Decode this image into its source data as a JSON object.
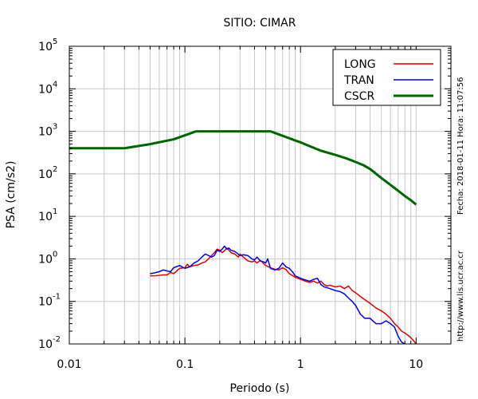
{
  "chart_data": {
    "type": "line",
    "title": "SITIO: CIMAR",
    "xlabel": "Periodo (s)",
    "ylabel": "PSA (cm/s2)",
    "x_scale": "log",
    "y_scale": "log",
    "xlim": [
      0.01,
      20
    ],
    "ylim": [
      0.01,
      100000
    ],
    "grid": "vertical",
    "legend_position": "top-right",
    "x_ticks": [
      {
        "value": 0.01,
        "label": "0.01"
      },
      {
        "value": 0.1,
        "label": "0.1"
      },
      {
        "value": 1,
        "label": "1"
      },
      {
        "value": 10,
        "label": "10"
      }
    ],
    "y_ticks": [
      {
        "value": 0.01,
        "base": "10",
        "exp": "-2"
      },
      {
        "value": 0.1,
        "base": "10",
        "exp": "-1"
      },
      {
        "value": 1,
        "base": "10",
        "exp": "0"
      },
      {
        "value": 10,
        "base": "10",
        "exp": "1"
      },
      {
        "value": 100,
        "base": "10",
        "exp": "2"
      },
      {
        "value": 1000,
        "base": "10",
        "exp": "3"
      },
      {
        "value": 10000,
        "base": "10",
        "exp": "4"
      },
      {
        "value": 100000,
        "base": "10",
        "exp": "5"
      }
    ],
    "side_text_1": "Fecha: 2018-01-11  Hora: 11:07:56",
    "side_text_2": "http://www.lis.ucr.ac.cr",
    "series": [
      {
        "name": "LONG",
        "color": "#e00000",
        "points": [
          [
            0.05,
            0.4
          ],
          [
            0.055,
            0.4
          ],
          [
            0.06,
            0.41
          ],
          [
            0.065,
            0.42
          ],
          [
            0.07,
            0.42
          ],
          [
            0.075,
            0.48
          ],
          [
            0.08,
            0.45
          ],
          [
            0.085,
            0.52
          ],
          [
            0.09,
            0.6
          ],
          [
            0.1,
            0.62
          ],
          [
            0.105,
            0.75
          ],
          [
            0.11,
            0.65
          ],
          [
            0.12,
            0.7
          ],
          [
            0.13,
            0.72
          ],
          [
            0.14,
            0.8
          ],
          [
            0.15,
            0.85
          ],
          [
            0.16,
            1.0
          ],
          [
            0.17,
            1.2
          ],
          [
            0.18,
            1.4
          ],
          [
            0.19,
            1.7
          ],
          [
            0.2,
            1.6
          ],
          [
            0.21,
            1.4
          ],
          [
            0.22,
            1.55
          ],
          [
            0.23,
            1.8
          ],
          [
            0.24,
            1.6
          ],
          [
            0.25,
            1.4
          ],
          [
            0.27,
            1.3
          ],
          [
            0.29,
            1.1
          ],
          [
            0.3,
            1.3
          ],
          [
            0.32,
            1.1
          ],
          [
            0.35,
            0.9
          ],
          [
            0.38,
            0.85
          ],
          [
            0.4,
            0.9
          ],
          [
            0.42,
            0.8
          ],
          [
            0.45,
            0.92
          ],
          [
            0.5,
            0.7
          ],
          [
            0.55,
            0.62
          ],
          [
            0.6,
            0.57
          ],
          [
            0.65,
            0.55
          ],
          [
            0.7,
            0.62
          ],
          [
            0.75,
            0.56
          ],
          [
            0.8,
            0.45
          ],
          [
            0.9,
            0.37
          ],
          [
            1.0,
            0.33
          ],
          [
            1.1,
            0.3
          ],
          [
            1.2,
            0.28
          ],
          [
            1.3,
            0.3
          ],
          [
            1.4,
            0.27
          ],
          [
            1.5,
            0.3
          ],
          [
            1.6,
            0.25
          ],
          [
            1.7,
            0.23
          ],
          [
            1.8,
            0.24
          ],
          [
            2.0,
            0.22
          ],
          [
            2.2,
            0.23
          ],
          [
            2.4,
            0.2
          ],
          [
            2.6,
            0.23
          ],
          [
            2.8,
            0.18
          ],
          [
            3.0,
            0.16
          ],
          [
            3.3,
            0.13
          ],
          [
            3.6,
            0.11
          ],
          [
            4.0,
            0.09
          ],
          [
            4.5,
            0.07
          ],
          [
            5.0,
            0.06
          ],
          [
            5.5,
            0.05
          ],
          [
            6.0,
            0.04
          ],
          [
            6.5,
            0.03
          ],
          [
            7.0,
            0.025
          ],
          [
            7.5,
            0.02
          ],
          [
            8.0,
            0.018
          ],
          [
            8.5,
            0.016
          ],
          [
            9.0,
            0.014
          ],
          [
            9.5,
            0.012
          ],
          [
            10.0,
            0.01
          ]
        ]
      },
      {
        "name": "TRAN",
        "color": "#0000e0",
        "points": [
          [
            0.05,
            0.45
          ],
          [
            0.055,
            0.47
          ],
          [
            0.06,
            0.5
          ],
          [
            0.065,
            0.55
          ],
          [
            0.07,
            0.52
          ],
          [
            0.075,
            0.5
          ],
          [
            0.08,
            0.62
          ],
          [
            0.09,
            0.7
          ],
          [
            0.1,
            0.6
          ],
          [
            0.11,
            0.65
          ],
          [
            0.12,
            0.8
          ],
          [
            0.13,
            0.9
          ],
          [
            0.14,
            1.1
          ],
          [
            0.15,
            1.3
          ],
          [
            0.16,
            1.2
          ],
          [
            0.17,
            1.1
          ],
          [
            0.18,
            1.2
          ],
          [
            0.19,
            1.6
          ],
          [
            0.2,
            1.5
          ],
          [
            0.21,
            1.7
          ],
          [
            0.22,
            2.0
          ],
          [
            0.23,
            1.7
          ],
          [
            0.24,
            1.8
          ],
          [
            0.25,
            1.6
          ],
          [
            0.27,
            1.5
          ],
          [
            0.3,
            1.2
          ],
          [
            0.32,
            1.25
          ],
          [
            0.35,
            1.2
          ],
          [
            0.38,
            1.0
          ],
          [
            0.4,
            0.95
          ],
          [
            0.42,
            1.1
          ],
          [
            0.45,
            0.9
          ],
          [
            0.48,
            0.85
          ],
          [
            0.5,
            0.8
          ],
          [
            0.52,
            1.0
          ],
          [
            0.55,
            0.6
          ],
          [
            0.6,
            0.55
          ],
          [
            0.65,
            0.6
          ],
          [
            0.7,
            0.8
          ],
          [
            0.75,
            0.65
          ],
          [
            0.8,
            0.6
          ],
          [
            0.85,
            0.5
          ],
          [
            0.9,
            0.4
          ],
          [
            1.0,
            0.35
          ],
          [
            1.1,
            0.32
          ],
          [
            1.2,
            0.3
          ],
          [
            1.3,
            0.33
          ],
          [
            1.4,
            0.35
          ],
          [
            1.5,
            0.25
          ],
          [
            1.6,
            0.22
          ],
          [
            1.7,
            0.21
          ],
          [
            1.8,
            0.2
          ],
          [
            2.0,
            0.18
          ],
          [
            2.2,
            0.17
          ],
          [
            2.4,
            0.15
          ],
          [
            2.6,
            0.12
          ],
          [
            2.8,
            0.1
          ],
          [
            3.0,
            0.08
          ],
          [
            3.3,
            0.05
          ],
          [
            3.6,
            0.04
          ],
          [
            4.0,
            0.04
          ],
          [
            4.5,
            0.03
          ],
          [
            5.0,
            0.03
          ],
          [
            5.5,
            0.035
          ],
          [
            6.0,
            0.03
          ],
          [
            6.5,
            0.025
          ],
          [
            7.0,
            0.015
          ],
          [
            7.5,
            0.011
          ],
          [
            8.0,
            0.01
          ]
        ]
      },
      {
        "name": "CSCR",
        "color": "#006400",
        "points": [
          [
            0.01,
            400
          ],
          [
            0.03,
            400
          ],
          [
            0.05,
            500
          ],
          [
            0.08,
            650
          ],
          [
            0.125,
            1000
          ],
          [
            0.55,
            1000
          ],
          [
            1.0,
            550
          ],
          [
            1.5,
            350
          ],
          [
            2.0,
            280
          ],
          [
            2.5,
            230
          ],
          [
            3.0,
            190
          ],
          [
            3.5,
            160
          ],
          [
            4.0,
            130
          ],
          [
            5.0,
            80
          ],
          [
            6.0,
            55
          ],
          [
            7.0,
            40
          ],
          [
            8.0,
            30
          ],
          [
            9.0,
            24
          ],
          [
            10.0,
            19
          ]
        ]
      }
    ]
  }
}
